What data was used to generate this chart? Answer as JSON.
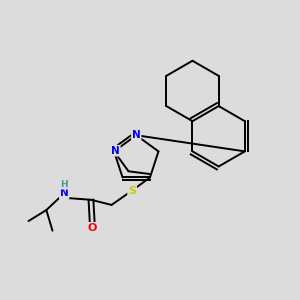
{
  "background_color": "#dcdcdc",
  "bond_color": "#000000",
  "atom_colors": {
    "N": "#0000ee",
    "O": "#ff0000",
    "S": "#cccc00",
    "H": "#4a9a8a",
    "C": "#000000"
  },
  "figsize": [
    3.0,
    3.0
  ],
  "dpi": 100
}
